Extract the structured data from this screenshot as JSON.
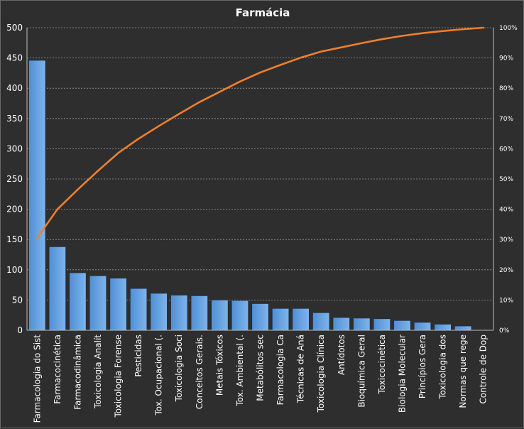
{
  "chart_data": {
    "type": "bar",
    "title": "Farmácia",
    "xlabel": "",
    "ylabel": "",
    "ylim": [
      0,
      500
    ],
    "y_ticks": [
      "0",
      "50",
      "100",
      "150",
      "200",
      "250",
      "300",
      "350",
      "400",
      "450",
      "500"
    ],
    "y2lim": [
      0,
      100
    ],
    "y2_ticks": [
      "0%",
      "10%",
      "20%",
      "30%",
      "40%",
      "50%",
      "60%",
      "70%",
      "80%",
      "90%",
      "100%"
    ],
    "grid": true,
    "legend": "none",
    "categories": [
      "Farmacologia do Sist",
      "Farmacocinética",
      "Farmacodinâmica",
      "Toxicologia Analít",
      "Toxicologia Forense",
      "Pesticidas",
      "Tox. Ocupacional (.",
      "Toxicologia Soci",
      "Conceitos Gerais.",
      "Metais Tóxicos",
      "Tox. Ambiental (.",
      "Metabólitos sec",
      "Farmacologia Ca",
      "Técnicas de Aná",
      "Toxicologia Clínica",
      "Antídotos",
      "Bioquímica Geral",
      "Toxicocinética",
      "Biologia Molecular",
      "Princípios Gera",
      "Toxicologia dos",
      "Normas que rege",
      "Controle de Dop"
    ],
    "series": [
      {
        "type": "bar",
        "values": [
          446,
          138,
          95,
          90,
          86,
          69,
          61,
          58,
          57,
          50,
          49,
          44,
          36,
          36,
          29,
          21,
          20,
          19,
          16,
          13,
          10,
          7,
          0
        ]
      },
      {
        "type": "line",
        "axis": "secondary",
        "values": [
          30.5,
          40.0,
          46.5,
          52.7,
          58.6,
          63.3,
          67.5,
          71.5,
          75.4,
          78.8,
          82.2,
          85.2,
          87.7,
          90.1,
          92.1,
          93.5,
          94.9,
          96.2,
          97.3,
          98.2,
          98.9,
          99.5,
          100.0
        ]
      }
    ],
    "colors": {
      "bar": "#4f8fd6",
      "bar_top": "#7fb4ea",
      "line": "#ef7f2d",
      "grid": "#9a9a9a",
      "background": "#2e2e2e",
      "text": "#ffffff"
    }
  }
}
